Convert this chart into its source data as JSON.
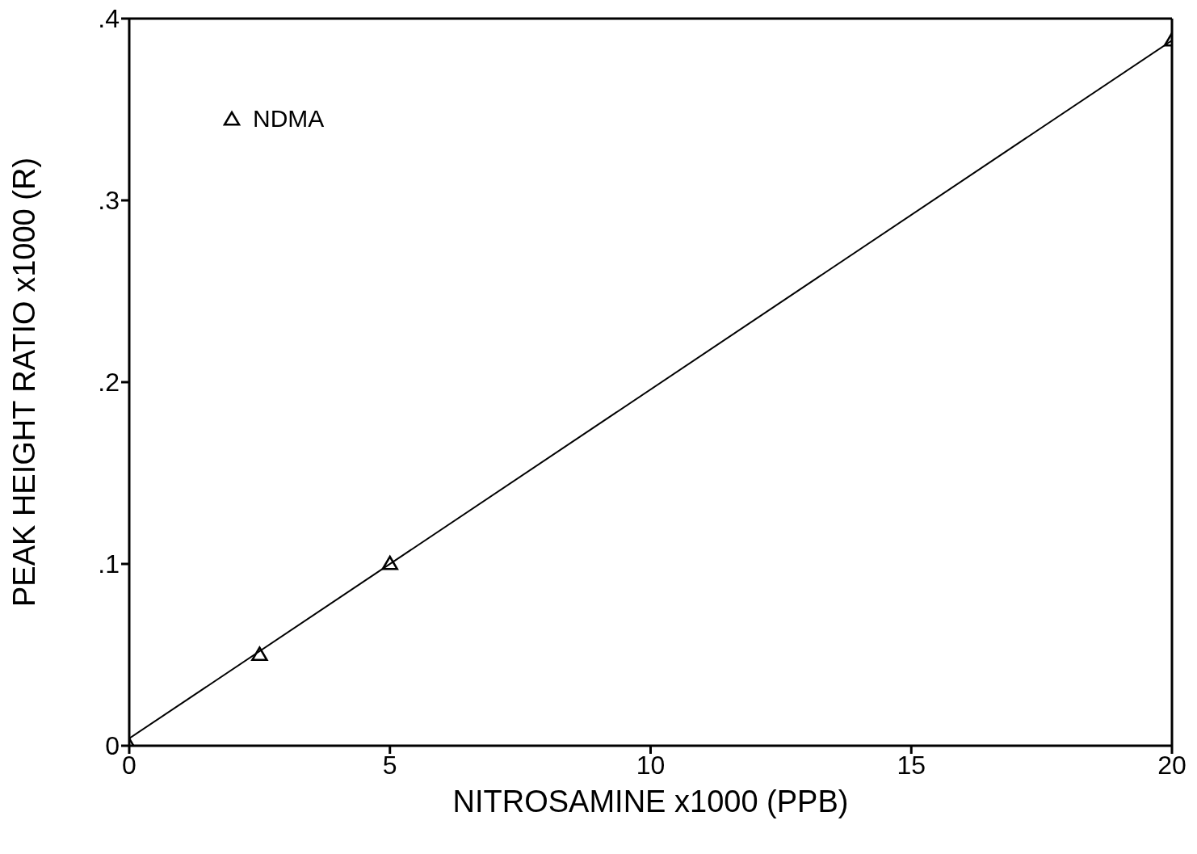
{
  "chart_data": {
    "type": "scatter",
    "xlabel": "NITROSAMINE x1000  (PPB)",
    "ylabel": "PEAK HEIGHT RATIO x1000  (R)",
    "xlim": [
      0,
      20
    ],
    "xticks": [
      0,
      5,
      10,
      15,
      20
    ],
    "ylim": [
      0,
      0.4
    ],
    "yticks": [
      0,
      {
        "value": 0.1,
        "label": ".1"
      },
      {
        "value": 0.2,
        "label": ".2"
      },
      {
        "value": 0.3,
        "label": ".3"
      },
      {
        "value": 0.4,
        "label": ".4"
      }
    ],
    "legend": "top left",
    "grid": false,
    "series": [
      {
        "name": "NDMA",
        "marker": "triangle",
        "color": "#000000",
        "x": [
          0,
          2.5,
          5,
          20
        ],
        "values": [
          0,
          0.05,
          0.1,
          0.388
        ]
      },
      {
        "type": "line",
        "color": "#000000",
        "marker": "none",
        "x": [
          0,
          20
        ],
        "values": [
          0.004,
          0.388
        ]
      }
    ]
  }
}
